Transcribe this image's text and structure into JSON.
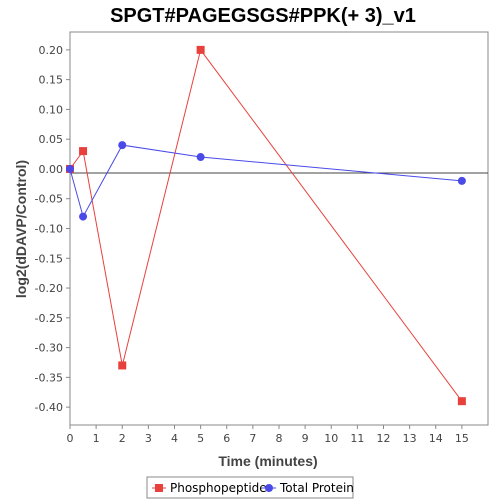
{
  "chart_data": {
    "type": "line",
    "title": "SPGT#PAGEGSGS#PPK(+ 3)_v1",
    "xlabel": "Time (minutes)",
    "ylabel": "log2(dDAVP/Control)",
    "xlim": [
      0,
      16
    ],
    "ylim": [
      -0.43,
      0.23
    ],
    "x_ticks": [
      0,
      1,
      2,
      3,
      4,
      5,
      6,
      7,
      8,
      9,
      10,
      11,
      12,
      13,
      14,
      15
    ],
    "y_ticks": [
      0.2,
      0.15,
      0.1,
      0.05,
      0.0,
      -0.05,
      -0.1,
      -0.15,
      -0.2,
      -0.25,
      -0.3,
      -0.35,
      -0.4
    ],
    "y_tick_labels": [
      "0.20",
      "0.15",
      "0.10",
      "0.05",
      "0.00",
      "-0.05",
      "-0.10",
      "-0.15",
      "-0.20",
      "-0.25",
      "-0.30",
      "-0.35",
      "-0.40"
    ],
    "grid": false,
    "zero_line": true,
    "legend_position": "bottom",
    "series": [
      {
        "name": "Phosphopeptide",
        "color": "#e8413c",
        "marker": "square",
        "x": [
          0,
          0.5,
          2,
          5,
          15
        ],
        "y": [
          0.0,
          0.03,
          -0.33,
          0.2,
          -0.39
        ]
      },
      {
        "name": "Total Protein",
        "color": "#4a4ae8",
        "marker": "circle",
        "x": [
          0,
          0.5,
          2,
          5,
          15
        ],
        "y": [
          0.0,
          -0.08,
          0.04,
          0.02,
          -0.02
        ]
      }
    ]
  }
}
